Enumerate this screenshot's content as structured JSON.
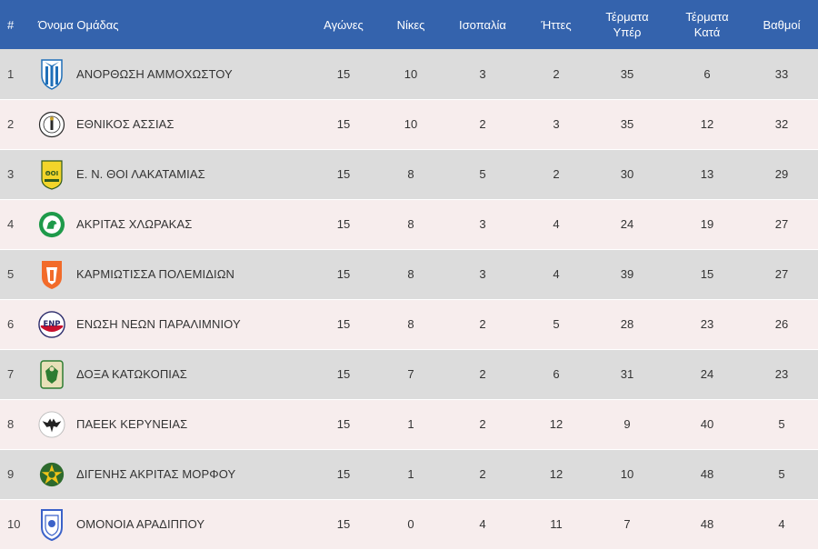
{
  "headers": {
    "pos": "#",
    "team": "Όνομα Ομάδας",
    "played": "Αγώνες",
    "wins": "Νίκες",
    "draws": "Ισοπαλία",
    "losses": "Ήττες",
    "goals_for_1": "Τέρματα",
    "goals_for_2": "Υπέρ",
    "goals_against_1": "Τέρματα",
    "goals_against_2": "Κατά",
    "points": "Βαθμοί"
  },
  "rows": [
    {
      "pos": "1",
      "team": "ΑΝΟΡΘΩΣΗ ΑΜΜΟΧΩΣΤΟΥ",
      "played": "15",
      "wins": "10",
      "draws": "3",
      "losses": "2",
      "gf": "35",
      "ga": "6",
      "pts": "33"
    },
    {
      "pos": "2",
      "team": "ΕΘΝΙΚΟΣ ΑΣΣΙΑΣ",
      "played": "15",
      "wins": "10",
      "draws": "2",
      "losses": "3",
      "gf": "35",
      "ga": "12",
      "pts": "32"
    },
    {
      "pos": "3",
      "team": "Ε. Ν. ΘΟΙ ΛΑΚΑΤΑΜΙΑΣ",
      "played": "15",
      "wins": "8",
      "draws": "5",
      "losses": "2",
      "gf": "30",
      "ga": "13",
      "pts": "29"
    },
    {
      "pos": "4",
      "team": "ΑΚΡΙΤΑΣ ΧΛΩΡΑΚΑΣ",
      "played": "15",
      "wins": "8",
      "draws": "3",
      "losses": "4",
      "gf": "24",
      "ga": "19",
      "pts": "27"
    },
    {
      "pos": "5",
      "team": "ΚΑΡΜΙΩΤΙΣΣΑ ΠΟΛΕΜΙΔΙΩΝ",
      "played": "15",
      "wins": "8",
      "draws": "3",
      "losses": "4",
      "gf": "39",
      "ga": "15",
      "pts": "27"
    },
    {
      "pos": "6",
      "team": "ΕΝΩΣΗ ΝΕΩΝ ΠΑΡΑΛΙΜΝΙΟΥ",
      "played": "15",
      "wins": "8",
      "draws": "2",
      "losses": "5",
      "gf": "28",
      "ga": "23",
      "pts": "26"
    },
    {
      "pos": "7",
      "team": "ΔΟΞΑ ΚΑΤΩΚΟΠΙΑΣ",
      "played": "15",
      "wins": "7",
      "draws": "2",
      "losses": "6",
      "gf": "31",
      "ga": "24",
      "pts": "23"
    },
    {
      "pos": "8",
      "team": "ΠΑΕΕΚ ΚΕΡΥΝΕΙΑΣ",
      "played": "15",
      "wins": "1",
      "draws": "2",
      "losses": "12",
      "gf": "9",
      "ga": "40",
      "pts": "5"
    },
    {
      "pos": "9",
      "team": "ΔΙΓΕΝΗΣ ΑΚΡΙΤΑΣ ΜΟΡΦΟΥ",
      "played": "15",
      "wins": "1",
      "draws": "2",
      "losses": "12",
      "gf": "10",
      "ga": "48",
      "pts": "5"
    },
    {
      "pos": "10",
      "team": "ΟΜΟΝΟΙΑ ΑΡΑΔΙΠΠΟΥ",
      "played": "15",
      "wins": "0",
      "draws": "4",
      "losses": "11",
      "gf": "7",
      "ga": "48",
      "pts": "4"
    }
  ],
  "logos": [
    {
      "icon": "anorthosis-crest-icon",
      "primary": "#1f6fb8",
      "secondary": "#ffffff"
    },
    {
      "icon": "ethnikos-assias-crest-icon",
      "primary": "#ffffff",
      "secondary": "#2a2a2a"
    },
    {
      "icon": "thoi-lakatamias-crest-icon",
      "primary": "#f2d52a",
      "secondary": "#2f5a1e"
    },
    {
      "icon": "akritas-chlorakas-crest-icon",
      "primary": "#1e9a4a",
      "secondary": "#ffffff"
    },
    {
      "icon": "karmiotissa-crest-icon",
      "primary": "#f26b2a",
      "secondary": "#ffffff"
    },
    {
      "icon": "enp-crest-icon",
      "primary": "#c8102e",
      "secondary": "#2a2a6a"
    },
    {
      "icon": "doxa-katokopias-crest-icon",
      "primary": "#2e7d32",
      "secondary": "#e8e0b8"
    },
    {
      "icon": "paeek-crest-icon",
      "primary": "#222222",
      "secondary": "#ffffff"
    },
    {
      "icon": "digenis-morfou-crest-icon",
      "primary": "#2d6a2d",
      "secondary": "#f0c419"
    },
    {
      "icon": "omonoia-aradippou-crest-icon",
      "primary": "#3b62c9",
      "secondary": "#ffffff"
    }
  ],
  "colors": {
    "header_bg": "#3463ad",
    "row_odd": "#dcdcdc",
    "row_even": "#f7eded"
  }
}
